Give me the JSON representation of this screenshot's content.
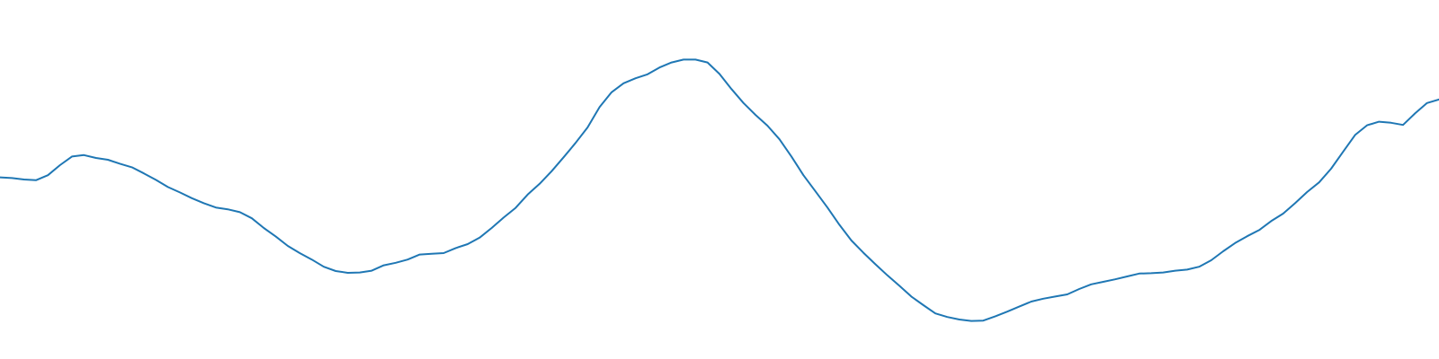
{
  "chart_data": {
    "type": "line",
    "title": "",
    "xlabel": "",
    "ylabel": "",
    "grid": false,
    "legend": "none",
    "line_color": "#1f77b4",
    "background_color": "#ffffff",
    "xlim": [
      0,
      120
    ],
    "ylim": [
      0,
      100
    ],
    "series": [
      {
        "x": [
          0,
          1,
          2,
          3,
          4,
          5,
          6,
          7,
          8,
          9,
          10,
          11,
          12,
          13,
          14,
          15,
          16,
          17,
          18,
          19,
          20,
          21,
          22,
          23,
          24,
          25,
          26,
          27,
          28,
          29,
          30,
          31,
          32,
          33,
          34,
          35,
          36,
          37,
          38,
          39,
          40,
          41,
          42,
          43,
          44,
          45,
          46,
          47,
          48,
          49,
          50,
          51,
          52,
          53,
          54,
          55,
          56,
          57,
          58,
          59,
          60,
          61,
          62,
          63,
          64,
          65,
          66,
          67,
          68,
          69,
          70,
          71,
          72,
          73,
          74,
          75,
          76,
          77,
          78,
          79,
          80,
          81,
          82,
          83,
          84,
          85,
          86,
          87,
          88,
          89,
          90,
          91,
          92,
          93,
          94,
          95,
          96,
          97,
          98,
          99,
          100,
          101,
          102,
          103,
          104,
          105,
          106,
          107,
          108,
          109,
          110,
          111,
          112,
          113,
          114,
          115,
          116,
          117,
          118,
          119,
          120
        ],
        "values": [
          50.6,
          50.4,
          50.0,
          49.8,
          51.2,
          54.0,
          56.4,
          56.8,
          56.0,
          55.5,
          54.4,
          53.4,
          51.7,
          49.9,
          47.9,
          46.4,
          44.8,
          43.4,
          42.2,
          41.7,
          40.9,
          39.2,
          36.5,
          34.1,
          31.5,
          29.5,
          27.7,
          25.7,
          24.5,
          24.0,
          24.1,
          24.6,
          26.1,
          26.8,
          27.7,
          29.1,
          29.3,
          29.5,
          30.9,
          32.0,
          33.8,
          36.5,
          39.4,
          42.1,
          45.8,
          48.8,
          52.3,
          56.2,
          60.2,
          64.5,
          70.2,
          74.3,
          76.8,
          78.2,
          79.3,
          81.2,
          82.6,
          83.4,
          83.4,
          82.6,
          79.4,
          75.2,
          71.3,
          68.0,
          65.0,
          61.2,
          56.4,
          51.2,
          46.7,
          42.2,
          37.4,
          33.0,
          29.6,
          26.4,
          23.3,
          20.4,
          17.4,
          15.0,
          12.7,
          11.7,
          11.0,
          10.6,
          10.7,
          11.9,
          13.2,
          14.6,
          16.0,
          16.8,
          17.4,
          18.0,
          19.5,
          20.8,
          21.5,
          22.2,
          23.0,
          23.8,
          23.9,
          24.1,
          24.6,
          24.9,
          25.7,
          27.5,
          30.0,
          32.3,
          34.2,
          35.9,
          38.4,
          40.5,
          43.4,
          46.5,
          49.2,
          53.0,
          57.7,
          62.4,
          65.1,
          66.1,
          65.8,
          65.2,
          68.4,
          71.3,
          72.3
        ]
      }
    ]
  }
}
